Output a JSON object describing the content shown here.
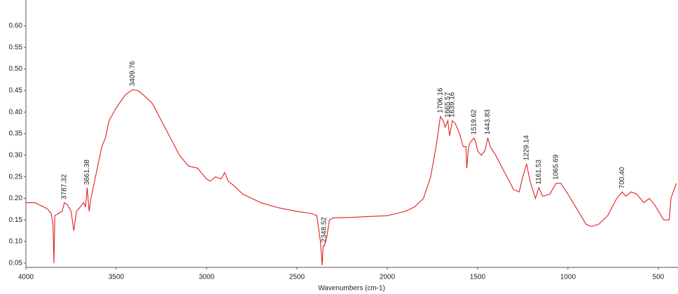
{
  "chart_data": {
    "type": "line",
    "x_label": "Wavenumbers (cm-1)",
    "color": "#e02020",
    "xlim": [
      4000,
      391
    ],
    "ylim": [
      0.04,
      0.66
    ],
    "xticks": [
      4000,
      3500,
      3000,
      2500,
      2000,
      1500,
      1000,
      500
    ],
    "yticks": [
      0.05,
      {
        "value": 0.1,
        "label": "0.10"
      },
      0.15,
      {
        "value": 0.2,
        "label": "0.20"
      },
      0.25,
      {
        "value": 0.3,
        "label": "0.30"
      },
      0.35,
      {
        "value": 0.4,
        "label": "0.40"
      },
      0.45,
      {
        "value": 0.5,
        "label": "0.50"
      },
      0.55,
      {
        "value": 0.6,
        "label": "0.60"
      }
    ],
    "x": [
      4000,
      3950,
      3900,
      3880,
      3860,
      3850,
      3845,
      3840,
      3820,
      3800,
      3787,
      3770,
      3750,
      3735,
      3720,
      3700,
      3680,
      3670,
      3661,
      3650,
      3640,
      3620,
      3600,
      3580,
      3560,
      3540,
      3500,
      3450,
      3410,
      3380,
      3350,
      3300,
      3250,
      3200,
      3150,
      3100,
      3050,
      3000,
      2980,
      2950,
      2920,
      2900,
      2880,
      2850,
      2800,
      2750,
      2700,
      2600,
      2500,
      2420,
      2390,
      2370,
      2360,
      2355,
      2348,
      2335,
      2320,
      2300,
      2200,
      2100,
      2000,
      1950,
      1900,
      1850,
      1800,
      1760,
      1730,
      1706,
      1690,
      1680,
      1665,
      1655,
      1640,
      1625,
      1600,
      1580,
      1565,
      1560,
      1550,
      1540,
      1520,
      1510,
      1500,
      1480,
      1460,
      1444,
      1430,
      1400,
      1350,
      1300,
      1270,
      1250,
      1229,
      1210,
      1180,
      1161,
      1140,
      1100,
      1066,
      1040,
      1000,
      950,
      900,
      870,
      830,
      780,
      730,
      700,
      680,
      650,
      620,
      580,
      550,
      520,
      470,
      440,
      430,
      400
    ],
    "values": [
      0.19,
      0.19,
      0.18,
      0.175,
      0.165,
      0.14,
      0.05,
      0.16,
      0.165,
      0.17,
      0.19,
      0.185,
      0.17,
      0.125,
      0.17,
      0.18,
      0.19,
      0.18,
      0.225,
      0.17,
      0.2,
      0.24,
      0.28,
      0.32,
      0.34,
      0.38,
      0.41,
      0.44,
      0.452,
      0.45,
      0.44,
      0.42,
      0.38,
      0.34,
      0.3,
      0.275,
      0.27,
      0.245,
      0.24,
      0.25,
      0.245,
      0.26,
      0.24,
      0.23,
      0.21,
      0.2,
      0.19,
      0.178,
      0.17,
      0.165,
      0.16,
      0.1,
      0.045,
      0.09,
      0.09,
      0.11,
      0.15,
      0.155,
      0.156,
      0.158,
      0.16,
      0.165,
      0.17,
      0.18,
      0.2,
      0.25,
      0.32,
      0.39,
      0.38,
      0.365,
      0.38,
      0.345,
      0.38,
      0.375,
      0.35,
      0.32,
      0.32,
      0.27,
      0.32,
      0.33,
      0.34,
      0.33,
      0.31,
      0.3,
      0.31,
      0.34,
      0.32,
      0.3,
      0.26,
      0.22,
      0.215,
      0.25,
      0.28,
      0.24,
      0.2,
      0.225,
      0.205,
      0.21,
      0.235,
      0.235,
      0.21,
      0.175,
      0.14,
      0.135,
      0.14,
      0.16,
      0.2,
      0.215,
      0.205,
      0.215,
      0.21,
      0.19,
      0.2,
      0.185,
      0.15,
      0.15,
      0.2,
      0.235
    ],
    "peaks": [
      {
        "value": 3787.32,
        "label": "3787.32"
      },
      {
        "value": 3661.38,
        "label": "3661.38"
      },
      {
        "value": 3409.76,
        "label": "3409.76"
      },
      {
        "value": 2348.52,
        "label": "2348.52"
      },
      {
        "value": 1706.16,
        "label": "1706.16"
      },
      {
        "value": 1665.57,
        "label": "1665.57"
      },
      {
        "value": 1639.16,
        "label": "1639.16"
      },
      {
        "value": 1519.62,
        "label": "1519.62"
      },
      {
        "value": 1443.83,
        "label": "1443.83"
      },
      {
        "value": 1229.14,
        "label": "1229.14"
      },
      {
        "value": 1161.53,
        "label": "1161.53"
      },
      {
        "value": 1065.69,
        "label": "1065.69"
      },
      {
        "value": 700.4,
        "label": "700.40"
      }
    ]
  }
}
